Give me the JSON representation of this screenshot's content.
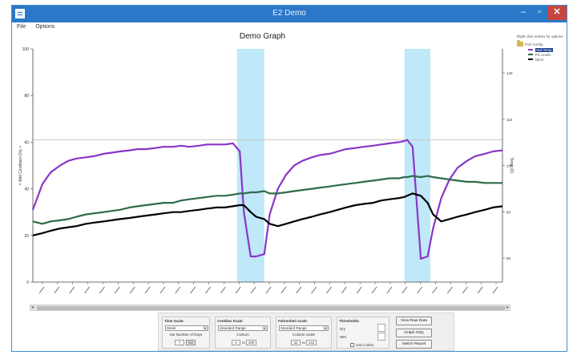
{
  "window": {
    "title": "E2 Demo",
    "minimize_glyph": "–",
    "maximize_glyph": "▫",
    "close_glyph": "✕"
  },
  "menu": {
    "items": [
      "File",
      "Options"
    ]
  },
  "graph": {
    "title": "Demo Graph",
    "left_axis_label": "< Wet Centibars Dry >",
    "right_axis_label": "Temp (F)"
  },
  "legend": {
    "hint": "Right click entries for options",
    "group_label": "Port Config",
    "items": [
      {
        "label": "Soil Temp",
        "color": "#8a36c8",
        "selected": true
      },
      {
        "label": "Pit Levels",
        "color": "#2e6b4a",
        "selected": false
      },
      {
        "label": "Ditch",
        "color": "#000000",
        "selected": false
      }
    ]
  },
  "chart_data": {
    "type": "line",
    "title": "Demo Graph",
    "ylabel": "< Wet Centibars Dry >",
    "y2label": "Temp (F)",
    "ylim": [
      0,
      100
    ],
    "y_ticks": [
      0,
      20,
      40,
      60,
      80,
      100
    ],
    "y2_ticks": [
      80,
      90,
      100,
      110,
      120
    ],
    "x_tick_count": 31,
    "threshold_line": 61,
    "irrigation_bands": [
      [
        15.0,
        17.0
      ],
      [
        27.3,
        29.2
      ]
    ],
    "x": [
      0,
      0.7,
      1.3,
      2,
      2.6,
      3.2,
      3.9,
      4.5,
      5.2,
      5.8,
      6.4,
      7.1,
      7.7,
      8.3,
      9,
      9.6,
      10.3,
      10.9,
      11.5,
      12.2,
      12.8,
      13.5,
      14.1,
      14.7,
      15.2,
      15.5,
      16,
      16.4,
      17,
      17.4,
      18,
      18.6,
      19.2,
      19.8,
      20.5,
      21.1,
      21.8,
      22.4,
      23,
      23.7,
      24.3,
      25,
      25.6,
      26.2,
      26.9,
      27.3,
      27.5,
      27.9,
      28.5,
      29,
      29.4,
      30,
      30.6,
      31.2,
      31.9,
      32.5,
      33.2,
      33.8,
      34.5
    ],
    "series": [
      {
        "name": "Soil Temp",
        "color": "#8a36c8",
        "axis": "left",
        "values": [
          31,
          42,
          47,
          50,
          52,
          53,
          53.5,
          54,
          55,
          55.5,
          56,
          56.5,
          57,
          57,
          57.5,
          58,
          58,
          58.5,
          58,
          58.5,
          59,
          59,
          59,
          59.5,
          56,
          30,
          11,
          11,
          12,
          29,
          40,
          46,
          50,
          52,
          53.5,
          54.5,
          55,
          56,
          57,
          57.5,
          58,
          58.5,
          59,
          59.5,
          60,
          60.5,
          61,
          58,
          10,
          11,
          23,
          36,
          44,
          49,
          52,
          54,
          55,
          56,
          56.5
        ]
      },
      {
        "name": "Pit Levels",
        "color": "#2e6b4a",
        "axis": "left",
        "values": [
          26,
          25,
          26,
          26.5,
          27,
          28,
          29,
          29.5,
          30,
          30.5,
          31,
          32,
          32.5,
          33,
          33.5,
          34,
          34,
          35,
          35.5,
          36,
          36.5,
          37,
          37,
          37.5,
          38,
          38,
          38.5,
          38.5,
          39,
          38,
          38,
          38.5,
          39,
          39.5,
          40,
          40.5,
          41,
          41.5,
          42,
          42.5,
          43,
          43.5,
          44,
          44.5,
          44.5,
          45,
          45,
          45.5,
          45,
          45.5,
          45,
          44.5,
          44,
          43.5,
          43,
          43,
          42.5,
          42.5,
          42.5
        ]
      },
      {
        "name": "Ditch",
        "color": "#000000",
        "axis": "left",
        "values": [
          20,
          21,
          22,
          23,
          23.5,
          24,
          25,
          25.5,
          26,
          26.5,
          27,
          27.5,
          28,
          28.5,
          29,
          29.5,
          30,
          30,
          30.5,
          31,
          31.5,
          32,
          32,
          32.5,
          33,
          33,
          30,
          28,
          27,
          25,
          24,
          25,
          26,
          27,
          28,
          29,
          30,
          31,
          32,
          33,
          33.5,
          34,
          35,
          35.5,
          36,
          36.5,
          37,
          38,
          37,
          34,
          29,
          26,
          27,
          28,
          29,
          30,
          31,
          32,
          32.5
        ]
      }
    ]
  },
  "scrollbar": {
    "left_arrow": "◂",
    "right_arrow": "▸"
  },
  "controls": {
    "time_scale": {
      "title": "Time Scale:",
      "value": "Week",
      "set_label": "Set Number of Days",
      "days_value": "7",
      "set_button": "Set"
    },
    "centibar_scale": {
      "title": "Centibar Scale:",
      "value": "Standard Range",
      "custom_label": "Custom",
      "min_value": "0",
      "to_label": "to",
      "max_value": "100"
    },
    "fahrenheit_scale": {
      "title": "Fahrenheit scale:",
      "value": "Standard Range",
      "custom_label": "Custom Scale",
      "min_value": "32",
      "to_label": "to",
      "max_value": "122"
    },
    "thresholds": {
      "title": "Thresholds:",
      "dry_label": "Dry",
      "wet_label": "Wet",
      "use_colors_label": "Use Colors"
    },
    "buttons": {
      "view_raw_data": "View Raw Data",
      "graph_only": "Graph Only",
      "switch_report": "Switch Report"
    }
  }
}
